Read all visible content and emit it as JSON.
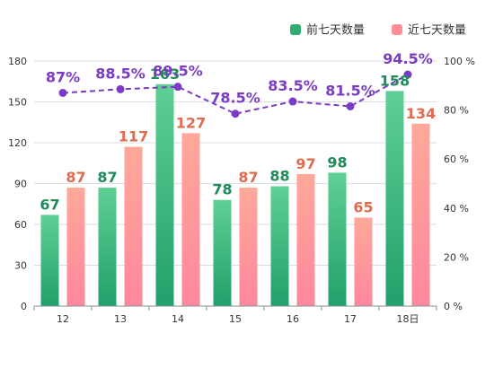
{
  "chart_data": {
    "type": "bar",
    "categories": [
      "12",
      "13",
      "14",
      "15",
      "16",
      "17",
      "18日"
    ],
    "series": [
      {
        "name": "前七天数量",
        "values": [
          67,
          87,
          163,
          78,
          88,
          98,
          158
        ],
        "color": "#2fae73"
      },
      {
        "name": "近七天数量",
        "values": [
          87,
          117,
          127,
          87,
          97,
          65,
          134
        ],
        "color": "#ff8e9a"
      }
    ],
    "line_series": {
      "values": [
        87,
        88.5,
        89.5,
        78.5,
        83.5,
        81.5,
        94.5
      ],
      "labels": [
        "87%",
        "88.5%",
        "89.5%",
        "78.5%",
        "83.5%",
        "81.5%",
        "94.5%"
      ],
      "color": "#7a3cc4"
    },
    "y_left": {
      "min": 0,
      "max": 180,
      "ticks": [
        "0",
        "30",
        "60",
        "90",
        "120",
        "150",
        "180"
      ]
    },
    "y_right": {
      "min": 0,
      "max": 100,
      "ticks": [
        "0 %",
        "20 %",
        "40 %",
        "60 %",
        "80 %",
        "100 %"
      ]
    },
    "bar_label_colors": [
      "#1e8c5a",
      "#e06b4f"
    ],
    "legend_position": "top-right",
    "grid": true,
    "title": "",
    "xlabel": "",
    "ylabel": ""
  }
}
